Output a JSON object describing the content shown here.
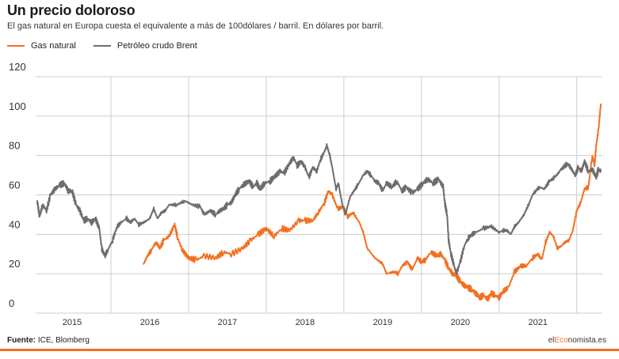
{
  "header": {
    "title": "Un precio doloroso",
    "subtitle": "El gas natural en Europa cuesta el equivalente a más de 100dólares / barril. En dólares por barril."
  },
  "footer": {
    "source_label": "Fuente:",
    "source_text": " ICE, Blomberg",
    "brand_pre": "el",
    "brand_mid": "Eco",
    "brand_post": "nomista.es"
  },
  "chart_data": {
    "type": "line",
    "title": "Un precio doloroso",
    "subtitle": "El gas natural en Europa cuesta el equivalente a más de 100dólares / barril. En dólares por barril.",
    "xlabel": "",
    "ylabel": "",
    "xlim": [
      2014.53,
      2021.83
    ],
    "ylim": [
      0,
      120
    ],
    "y_ticks": [
      0,
      20,
      40,
      60,
      80,
      100,
      120
    ],
    "x_ticks": [
      "2015",
      "2016",
      "2017",
      "2018",
      "2019",
      "2020",
      "2021"
    ],
    "grid": true,
    "legend_position": "top-left",
    "colors": {
      "gas": "#f37021",
      "brent": "#6d6d6d",
      "grid": "#cccccc",
      "accent_bar": "#f37021"
    },
    "series": [
      {
        "name": "Gas natural",
        "color": "#f37021",
        "points": [
          [
            2015.92,
            25
          ],
          [
            2015.97,
            29
          ],
          [
            2016.02,
            32
          ],
          [
            2016.08,
            36
          ],
          [
            2016.13,
            33
          ],
          [
            2016.18,
            37
          ],
          [
            2016.25,
            39
          ],
          [
            2016.32,
            45
          ],
          [
            2016.36,
            38
          ],
          [
            2016.42,
            32
          ],
          [
            2016.5,
            28
          ],
          [
            2016.6,
            27
          ],
          [
            2016.7,
            29
          ],
          [
            2016.85,
            28
          ],
          [
            2016.95,
            31
          ],
          [
            2017.05,
            30
          ],
          [
            2017.2,
            33
          ],
          [
            2017.3,
            37
          ],
          [
            2017.4,
            40
          ],
          [
            2017.5,
            43
          ],
          [
            2017.6,
            39
          ],
          [
            2017.7,
            43
          ],
          [
            2017.8,
            42
          ],
          [
            2017.92,
            47
          ],
          [
            2018.0,
            47
          ],
          [
            2018.1,
            47
          ],
          [
            2018.17,
            51
          ],
          [
            2018.25,
            56
          ],
          [
            2018.3,
            62
          ],
          [
            2018.35,
            60
          ],
          [
            2018.42,
            53
          ],
          [
            2018.5,
            54
          ],
          [
            2018.55,
            49
          ],
          [
            2018.62,
            51
          ],
          [
            2018.7,
            46
          ],
          [
            2018.75,
            41
          ],
          [
            2018.8,
            33
          ],
          [
            2018.9,
            28
          ],
          [
            2019.0,
            25
          ],
          [
            2019.05,
            20
          ],
          [
            2019.15,
            21
          ],
          [
            2019.2,
            20
          ],
          [
            2019.25,
            24
          ],
          [
            2019.32,
            26
          ],
          [
            2019.38,
            22
          ],
          [
            2019.45,
            28
          ],
          [
            2019.5,
            26
          ],
          [
            2019.55,
            27
          ],
          [
            2019.62,
            31
          ],
          [
            2019.7,
            29
          ],
          [
            2019.75,
            30
          ],
          [
            2019.8,
            27
          ],
          [
            2019.85,
            23
          ],
          [
            2019.9,
            20
          ],
          [
            2019.95,
            19
          ],
          [
            2020.0,
            16
          ],
          [
            2020.05,
            14
          ],
          [
            2020.1,
            13
          ],
          [
            2020.15,
            12
          ],
          [
            2020.2,
            10
          ],
          [
            2020.25,
            8
          ],
          [
            2020.3,
            9
          ],
          [
            2020.35,
            7
          ],
          [
            2020.4,
            10
          ],
          [
            2020.45,
            9
          ],
          [
            2020.5,
            8
          ],
          [
            2020.55,
            11
          ],
          [
            2020.62,
            13
          ],
          [
            2020.7,
            21
          ],
          [
            2020.78,
            24
          ],
          [
            2020.85,
            24
          ],
          [
            2020.93,
            28
          ],
          [
            2021.0,
            30
          ],
          [
            2021.05,
            27
          ],
          [
            2021.1,
            36
          ],
          [
            2021.15,
            41
          ],
          [
            2021.2,
            39
          ],
          [
            2021.25,
            33
          ],
          [
            2021.3,
            34
          ],
          [
            2021.35,
            36
          ],
          [
            2021.4,
            37
          ],
          [
            2021.45,
            42
          ],
          [
            2021.5,
            52
          ],
          [
            2021.55,
            56
          ],
          [
            2021.6,
            63
          ],
          [
            2021.65,
            64
          ],
          [
            2021.7,
            80
          ],
          [
            2021.73,
            75
          ],
          [
            2021.75,
            85
          ],
          [
            2021.78,
            93
          ],
          [
            2021.81,
            106
          ]
        ]
      },
      {
        "name": "Petróleo crudo Brent",
        "color": "#6d6d6d",
        "points": [
          [
            2014.55,
            57
          ],
          [
            2014.58,
            49
          ],
          [
            2014.62,
            55
          ],
          [
            2014.67,
            52
          ],
          [
            2014.72,
            60
          ],
          [
            2014.78,
            63
          ],
          [
            2014.84,
            65
          ],
          [
            2014.9,
            66
          ],
          [
            2014.95,
            62
          ],
          [
            2015.0,
            62
          ],
          [
            2015.05,
            55
          ],
          [
            2015.1,
            52
          ],
          [
            2015.15,
            47
          ],
          [
            2015.2,
            48
          ],
          [
            2015.25,
            46
          ],
          [
            2015.3,
            48
          ],
          [
            2015.35,
            43
          ],
          [
            2015.38,
            33
          ],
          [
            2015.42,
            29
          ],
          [
            2015.46,
            32
          ],
          [
            2015.52,
            37
          ],
          [
            2015.58,
            44
          ],
          [
            2015.63,
            46
          ],
          [
            2015.7,
            48
          ],
          [
            2015.75,
            46
          ],
          [
            2015.8,
            48
          ],
          [
            2015.86,
            45
          ],
          [
            2015.92,
            46
          ],
          [
            2016.0,
            48
          ],
          [
            2016.05,
            53
          ],
          [
            2016.1,
            48
          ],
          [
            2016.15,
            51
          ],
          [
            2016.2,
            52
          ],
          [
            2016.25,
            55
          ],
          [
            2016.35,
            55
          ],
          [
            2016.45,
            57
          ],
          [
            2016.55,
            55
          ],
          [
            2016.65,
            54
          ],
          [
            2016.7,
            50
          ],
          [
            2016.78,
            52
          ],
          [
            2016.85,
            50
          ],
          [
            2016.9,
            52
          ],
          [
            2016.95,
            53
          ],
          [
            2017.0,
            55
          ],
          [
            2017.05,
            56
          ],
          [
            2017.1,
            60
          ],
          [
            2017.15,
            63
          ],
          [
            2017.2,
            65
          ],
          [
            2017.28,
            67
          ],
          [
            2017.33,
            64
          ],
          [
            2017.38,
            66
          ],
          [
            2017.42,
            63
          ],
          [
            2017.48,
            66
          ],
          [
            2017.55,
            67
          ],
          [
            2017.6,
            69
          ],
          [
            2017.68,
            72
          ],
          [
            2017.73,
            71
          ],
          [
            2017.8,
            76
          ],
          [
            2017.85,
            79
          ],
          [
            2017.9,
            75
          ],
          [
            2017.95,
            77
          ],
          [
            2018.0,
            74
          ],
          [
            2018.05,
            69
          ],
          [
            2018.1,
            74
          ],
          [
            2018.15,
            72
          ],
          [
            2018.2,
            78
          ],
          [
            2018.25,
            82
          ],
          [
            2018.28,
            85
          ],
          [
            2018.32,
            80
          ],
          [
            2018.35,
            74
          ],
          [
            2018.4,
            63
          ],
          [
            2018.43,
            66
          ],
          [
            2018.48,
            55
          ],
          [
            2018.52,
            50
          ],
          [
            2018.58,
            59
          ],
          [
            2018.63,
            62
          ],
          [
            2018.68,
            65
          ],
          [
            2018.75,
            70
          ],
          [
            2018.8,
            72
          ],
          [
            2018.85,
            70
          ],
          [
            2018.9,
            67
          ],
          [
            2018.95,
            66
          ],
          [
            2019.0,
            62
          ],
          [
            2019.05,
            66
          ],
          [
            2019.12,
            64
          ],
          [
            2019.18,
            67
          ],
          [
            2019.25,
            62
          ],
          [
            2019.3,
            64
          ],
          [
            2019.38,
            61
          ],
          [
            2019.45,
            63
          ],
          [
            2019.52,
            66
          ],
          [
            2019.58,
            68
          ],
          [
            2019.65,
            66
          ],
          [
            2019.72,
            68
          ],
          [
            2019.78,
            64
          ],
          [
            2019.8,
            56
          ],
          [
            2019.83,
            50
          ],
          [
            2019.85,
            37
          ],
          [
            2019.88,
            30
          ],
          [
            2019.92,
            24
          ],
          [
            2019.95,
            20
          ],
          [
            2020.0,
            26
          ],
          [
            2020.05,
            34
          ],
          [
            2020.1,
            38
          ],
          [
            2020.15,
            40
          ],
          [
            2020.2,
            41
          ],
          [
            2020.3,
            43
          ],
          [
            2020.4,
            44
          ],
          [
            2020.5,
            41
          ],
          [
            2020.55,
            42
          ],
          [
            2020.6,
            42
          ],
          [
            2020.65,
            40
          ],
          [
            2020.7,
            44
          ],
          [
            2020.75,
            46
          ],
          [
            2020.82,
            50
          ],
          [
            2020.88,
            55
          ],
          [
            2020.93,
            60
          ],
          [
            2020.97,
            62
          ],
          [
            2021.02,
            64
          ],
          [
            2021.08,
            63
          ],
          [
            2021.15,
            67
          ],
          [
            2021.22,
            69
          ],
          [
            2021.3,
            73
          ],
          [
            2021.38,
            76
          ],
          [
            2021.42,
            74
          ],
          [
            2021.48,
            70
          ],
          [
            2021.52,
            74
          ],
          [
            2021.56,
            72
          ],
          [
            2021.6,
            77
          ],
          [
            2021.65,
            72
          ],
          [
            2021.7,
            73
          ],
          [
            2021.75,
            69
          ],
          [
            2021.78,
            73
          ],
          [
            2021.81,
            72
          ]
        ]
      }
    ]
  }
}
